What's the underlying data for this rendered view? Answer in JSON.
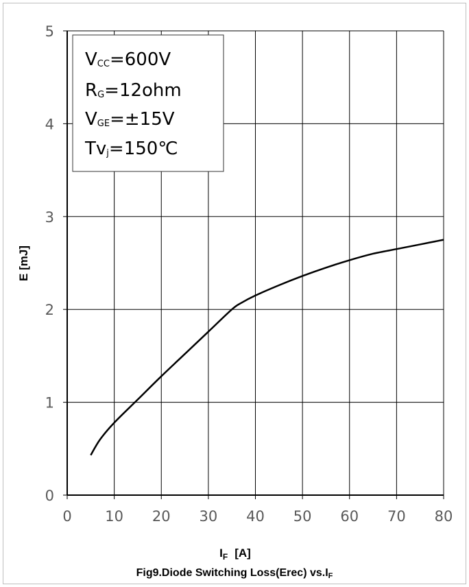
{
  "chart_data": {
    "type": "line",
    "title": "Fig9.Diode Switching Loss(Erec) vs.I",
    "title_sub": "F",
    "xlabel": "I",
    "xlabel_sub": "F",
    "xlabel_unit": "[A]",
    "ylabel": "E  [mJ]",
    "xlim": [
      0,
      80
    ],
    "ylim": [
      0,
      5
    ],
    "xticks": [
      0,
      10,
      20,
      30,
      40,
      50,
      60,
      70,
      80
    ],
    "yticks": [
      0,
      1,
      2,
      3,
      4,
      5
    ],
    "grid": true,
    "line_color": "#000000",
    "series": [
      {
        "x": [
          5,
          7,
          10,
          15,
          20,
          25,
          30,
          35,
          37,
          40,
          45,
          50,
          55,
          60,
          65,
          70,
          75,
          80
        ],
        "y": [
          0.43,
          0.6,
          0.78,
          1.03,
          1.28,
          1.52,
          1.76,
          2.0,
          2.07,
          2.15,
          2.26,
          2.36,
          2.45,
          2.53,
          2.6,
          2.65,
          2.7,
          2.75
        ]
      }
    ],
    "annotation": {
      "lines": [
        {
          "main": "V",
          "sub": "CC",
          "rest": "=600V"
        },
        {
          "main": "R",
          "sub": "G",
          "rest": "=12ohm"
        },
        {
          "main": "V",
          "sub": "GE",
          "rest": "=±15V"
        },
        {
          "main": "Tv",
          "sub": "j",
          "rest": "=150℃"
        }
      ],
      "placement": "top-left"
    }
  }
}
